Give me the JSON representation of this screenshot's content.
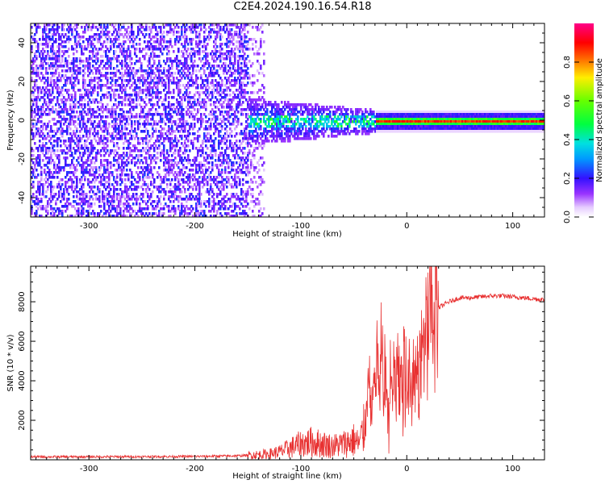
{
  "figure": {
    "title": "C2E4.2024.190.16.54.R18"
  },
  "chart_data": [
    {
      "type": "heatmap",
      "xlabel": "Height of straight line (km)",
      "ylabel": "Frequency (Hz)",
      "xlim": [
        -355,
        130
      ],
      "ylim": [
        -50,
        50
      ],
      "xticks": [
        -300,
        -200,
        -100,
        0,
        100
      ],
      "yticks": [
        -40,
        -20,
        0,
        20,
        40
      ],
      "colorbar": {
        "label": "Normalized spectral amplitude",
        "range": [
          0,
          1
        ],
        "ticks": [
          "0.0",
          "0.2",
          "0.4",
          "0.6",
          "0.8"
        ],
        "colormap": "rainbow (white-violet-blue-cyan-green-yellow-red-magenta)"
      },
      "regions": [
        {
          "x_range": [
            -355,
            -150
          ],
          "freq_range": [
            -50,
            50
          ],
          "description": "broadband noise, amplitude ~0.1-0.25"
        },
        {
          "x_range": [
            -150,
            -30
          ],
          "freq_range": [
            -12,
            12
          ],
          "description": "signal emerging, amplitude ~0.2-0.5"
        },
        {
          "x_range": [
            -30,
            130
          ],
          "freq_range": [
            -3,
            3
          ],
          "description": "narrow carrier line near 0 Hz, amplitude ~0.7-1.0"
        }
      ]
    },
    {
      "type": "line",
      "xlabel": "Height of straight line (km)",
      "ylabel": "SNR (10 * v/v)",
      "xlim": [
        -355,
        130
      ],
      "ylim": [
        0,
        9800
      ],
      "xticks": [
        -300,
        -200,
        -100,
        0,
        100
      ],
      "yticks": [
        2000,
        4000,
        6000,
        8000
      ],
      "color": "#e83030",
      "series": [
        {
          "x": [
            -355,
            -300,
            -250,
            -200,
            -160,
            -140,
            -130,
            -120,
            -110,
            -100,
            -90,
            -80,
            -70,
            -60,
            -50,
            -45,
            -40,
            -35,
            -30,
            -25,
            -20,
            -15,
            -10,
            -5,
            0,
            5,
            10,
            15,
            20,
            25,
            30,
            40,
            50,
            60,
            70,
            80,
            85,
            90,
            100,
            110,
            120,
            130
          ],
          "values": [
            150,
            150,
            160,
            170,
            200,
            260,
            300,
            400,
            600,
            800,
            900,
            800,
            700,
            800,
            1000,
            800,
            1600,
            3800,
            4000,
            5500,
            4200,
            3500,
            4300,
            3800,
            5200,
            2800,
            4400,
            5500,
            6800,
            7300,
            7700,
            8000,
            8200,
            8200,
            8250,
            8300,
            8300,
            8300,
            8250,
            8200,
            8150,
            8100
          ]
        }
      ]
    }
  ]
}
